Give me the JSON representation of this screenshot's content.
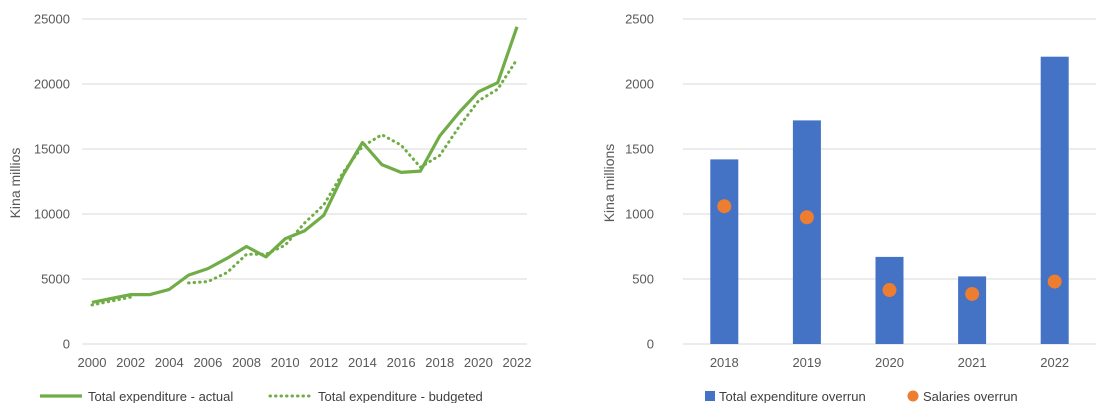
{
  "chart_data": [
    {
      "type": "line",
      "title": "",
      "xlabel": "",
      "ylabel": "Kina millios",
      "ylim": [
        0,
        25000
      ],
      "yticks": [
        0,
        5000,
        10000,
        15000,
        20000,
        25000
      ],
      "xticks": [
        2000,
        2002,
        2004,
        2006,
        2008,
        2010,
        2012,
        2014,
        2016,
        2018,
        2020,
        2022
      ],
      "grid": "horizontal",
      "legend": "bottom",
      "colors": {
        "series": "#70ad47"
      },
      "x": [
        2000,
        2001,
        2002,
        2003,
        2004,
        2005,
        2006,
        2007,
        2008,
        2009,
        2010,
        2011,
        2012,
        2013,
        2014,
        2015,
        2016,
        2017,
        2018,
        2019,
        2020,
        2021,
        2022
      ],
      "series": [
        {
          "name": "Total expenditure - actual",
          "style": "solid",
          "values": [
            3200,
            3500,
            3800,
            3800,
            4200,
            5300,
            5800,
            6600,
            7500,
            6700,
            8100,
            8700,
            9900,
            13000,
            15500,
            13800,
            13200,
            13300,
            16000,
            17800,
            19400,
            20100,
            24400
          ]
        },
        {
          "name": "Total expenditure - budgeted",
          "style": "dotted",
          "values": [
            3000,
            3300,
            3600,
            null,
            null,
            4700,
            4800,
            5500,
            6900,
            6900,
            7600,
            9300,
            10700,
            13200,
            15200,
            16100,
            15300,
            13600,
            14500,
            16700,
            18700,
            19600,
            21900
          ]
        }
      ]
    },
    {
      "type": "bar",
      "title": "",
      "xlabel": "",
      "ylabel": "Kina millions",
      "ylim": [
        0,
        2500
      ],
      "yticks": [
        0,
        500,
        1000,
        1500,
        2000,
        2500
      ],
      "grid": "horizontal",
      "legend": "bottom",
      "categories": [
        "2018",
        "2019",
        "2020",
        "2021",
        "2022"
      ],
      "series": [
        {
          "name": "Total expenditure overrun",
          "kind": "bar",
          "color": "#4472c4",
          "values": [
            1420,
            1720,
            670,
            520,
            2210
          ]
        },
        {
          "name": "Salaries overrun",
          "kind": "marker",
          "color": "#ed7d31",
          "values": [
            1060,
            975,
            415,
            385,
            480
          ]
        }
      ]
    }
  ]
}
